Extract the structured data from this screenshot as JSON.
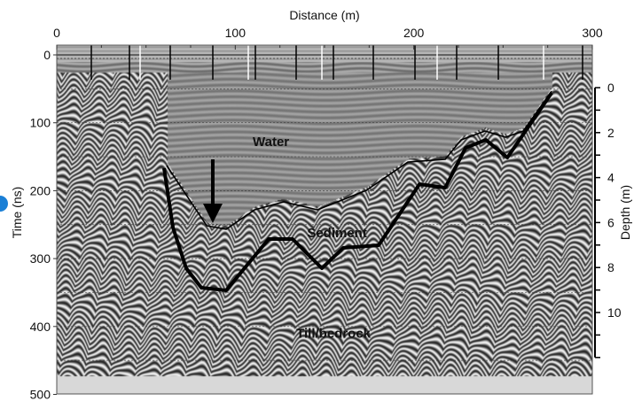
{
  "chart_data": {
    "type": "line",
    "background": "ground-penetrating radar radargram",
    "x_axis": {
      "label": "Distance (m)",
      "position": "top",
      "range": [
        0,
        300
      ],
      "ticks": [
        0,
        100,
        200,
        300
      ],
      "tick_labels": [
        "0",
        "100",
        "200",
        "300"
      ]
    },
    "y_axis_left": {
      "label": "Time (ns)",
      "range": [
        0,
        500
      ],
      "inverted": true,
      "ticks": [
        0,
        100,
        200,
        300,
        400,
        500
      ],
      "tick_labels": [
        "0",
        "100",
        "200",
        "300",
        "400",
        "500"
      ]
    },
    "y_axis_right": {
      "label": "Depth (m)",
      "range": [
        0,
        12
      ],
      "inverted": true,
      "ticks": [
        0,
        2,
        4,
        6,
        8,
        10
      ],
      "tick_labels": [
        "0",
        "2",
        "4",
        "6",
        "8",
        "10"
      ]
    },
    "series": [
      {
        "name": "lake bottom (water/sediment)",
        "style": "thin",
        "x": [
          61.6,
          84,
          94.9,
          110.8,
          127.2,
          146,
          173.4,
          196.7,
          217.6,
          226.5,
          239.9,
          251.4,
          261.3,
          277.2
        ],
        "y": [
          163,
          251.6,
          256.8,
          228.2,
          216.4,
          228.2,
          199.5,
          157.8,
          153.8,
          125.2,
          112.1,
          121.3,
          112.1,
          53.5
        ]
      },
      {
        "name": "sediment base (sediment/till-bedrock)",
        "style": "thick",
        "x": [
          60.1,
          65.1,
          72.5,
          81.0,
          94.9,
          118.7,
          132.1,
          148.5,
          160.5,
          180.3,
          203.2,
          217.6,
          229.0,
          240.4,
          252.4,
          277.2
        ],
        "y": [
          166.9,
          254.2,
          314.2,
          342.9,
          346.8,
          271.2,
          271.2,
          314.2,
          284.2,
          280.3,
          190.4,
          195.6,
          136.9,
          125.2,
          151.2,
          56.1
        ]
      }
    ],
    "annotations": [
      {
        "text": "Water",
        "x": 120,
        "y": 128
      },
      {
        "text": "Sediment",
        "x": 157,
        "y": 262
      },
      {
        "text": "Till/bedrock",
        "x": 155,
        "y": 410
      }
    ],
    "arrow": {
      "x": 87.4,
      "y_start": 153.8,
      "y_end": 247.7
    },
    "grid": "dotted horizontal"
  }
}
